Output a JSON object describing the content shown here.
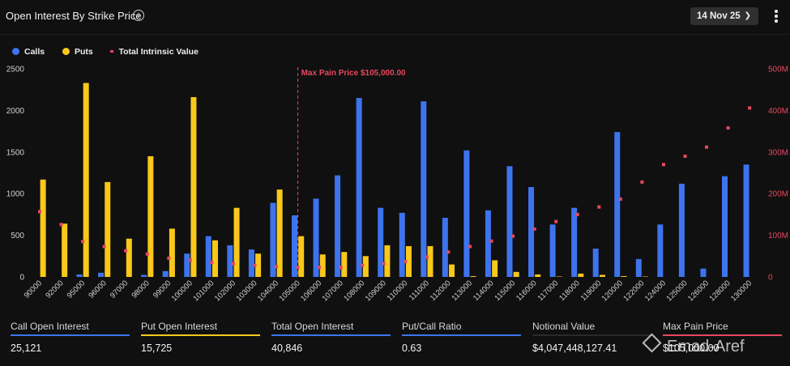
{
  "header": {
    "title": "Open Interest By Strike Price",
    "date": "14 Nov 25",
    "info_icon": "info-icon"
  },
  "legend": {
    "calls": "Calls",
    "puts": "Puts",
    "tiv": "Total Intrinsic Value"
  },
  "colors": {
    "calls": "#3d74ee",
    "puts": "#f8c81a",
    "tiv": "#e8475f"
  },
  "chart_data": {
    "type": "bar",
    "categories": [
      "90000",
      "92000",
      "95000",
      "96000",
      "97000",
      "98000",
      "99000",
      "100000",
      "101000",
      "102000",
      "103000",
      "104000",
      "105000",
      "106000",
      "107000",
      "108000",
      "109000",
      "110000",
      "111000",
      "112000",
      "113000",
      "114000",
      "115000",
      "116000",
      "117000",
      "118000",
      "119000",
      "120000",
      "122000",
      "124000",
      "125000",
      "126000",
      "128000",
      "130000"
    ],
    "series": [
      {
        "name": "Calls",
        "axis": "left",
        "values": [
          0,
          0,
          30,
          50,
          0,
          25,
          70,
          280,
          490,
          380,
          330,
          890,
          740,
          940,
          1220,
          2150,
          830,
          770,
          2110,
          710,
          1520,
          800,
          1330,
          1080,
          630,
          830,
          340,
          1740,
          215,
          630,
          1120,
          100,
          1210,
          1350
        ]
      },
      {
        "name": "Puts",
        "axis": "left",
        "values": [
          1170,
          640,
          2330,
          1140,
          460,
          1450,
          580,
          2160,
          440,
          830,
          280,
          1050,
          490,
          270,
          300,
          250,
          380,
          370,
          370,
          150,
          10,
          200,
          60,
          30,
          5,
          40,
          25,
          10,
          5,
          0,
          0,
          0,
          0,
          0
        ]
      },
      {
        "name": "Total Intrinsic Value",
        "axis": "right",
        "values": [
          157,
          126,
          85,
          73,
          63,
          55,
          45,
          40,
          35,
          32,
          28,
          25,
          23,
          23,
          23,
          28,
          32,
          37,
          48,
          60,
          73,
          86,
          98,
          115,
          133,
          150,
          168,
          187,
          228,
          270,
          290,
          312,
          358,
          406
        ]
      }
    ],
    "y_left": {
      "min": 0,
      "max": 2500,
      "ticks": [
        0,
        500,
        1000,
        1500,
        2000,
        2500
      ],
      "tick_labels": [
        "0",
        "500",
        "1000",
        "1500",
        "2000",
        "2500"
      ]
    },
    "y_right": {
      "min": 0,
      "max": 500,
      "unit": "M",
      "ticks": [
        0,
        100,
        200,
        300,
        400,
        500
      ],
      "tick_labels": [
        "0",
        "100M",
        "200M",
        "300M",
        "400M",
        "500M"
      ]
    },
    "annotation": {
      "label": "Max Pain Price $105,000.00",
      "category": "105000"
    }
  },
  "stats": [
    {
      "label": "Call Open Interest",
      "value": "25,121",
      "color": "#3d74ee"
    },
    {
      "label": "Put Open Interest",
      "value": "15,725",
      "color": "#f8c81a"
    },
    {
      "label": "Total Open Interest",
      "value": "40,846",
      "color": "#3d74ee"
    },
    {
      "label": "Put/Call Ratio",
      "value": "0.63",
      "color": "#3d74ee"
    },
    {
      "label": "Notional Value",
      "value": "$4,047,448,127.41",
      "color": "#2a2a2a"
    },
    {
      "label": "Max Pain Price",
      "value": "$105,000.00",
      "color": "#e8475f"
    }
  ],
  "watermark": "Emad-Aref"
}
